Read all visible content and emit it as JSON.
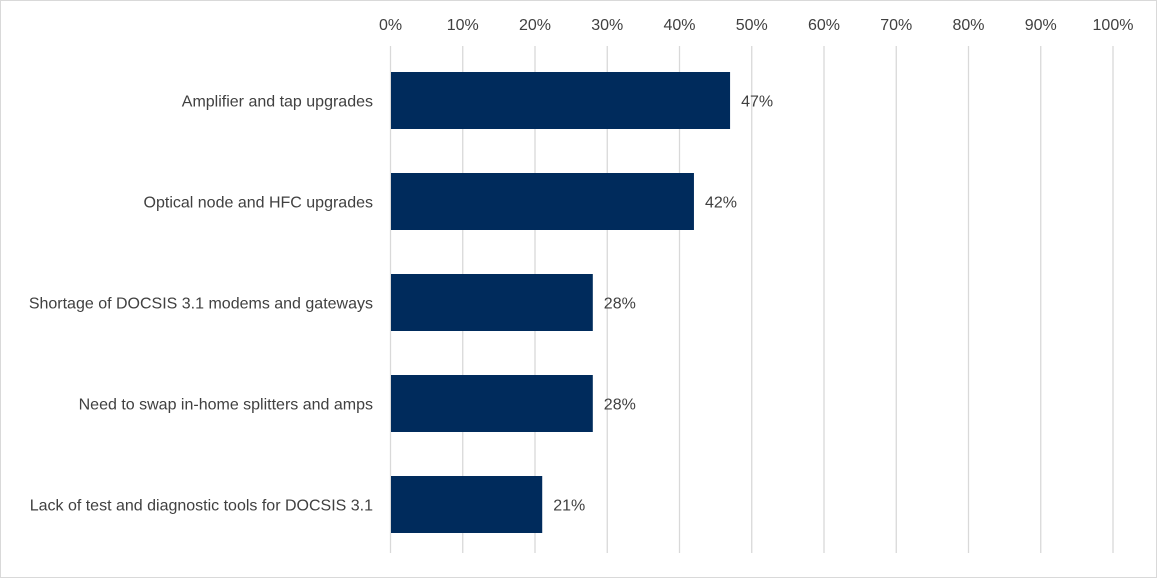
{
  "chart_data": {
    "type": "bar",
    "orientation": "horizontal",
    "categories": [
      "Amplifier and tap upgrades",
      "Optical node and HFC upgrades",
      "Shortage of DOCSIS 3.1 modems and gateways",
      "Need to swap in-home splitters and amps",
      "Lack of test and diagnostic tools for DOCSIS 3.1"
    ],
    "values": [
      47,
      42,
      28,
      28,
      21
    ],
    "data_labels": [
      "47%",
      "42%",
      "28%",
      "28%",
      "21%"
    ],
    "xlim": [
      0,
      100
    ],
    "x_ticks": [
      0,
      10,
      20,
      30,
      40,
      50,
      60,
      70,
      80,
      90,
      100
    ],
    "x_tick_labels": [
      "0%",
      "10%",
      "20%",
      "30%",
      "40%",
      "50%",
      "60%",
      "70%",
      "80%",
      "90%",
      "100%"
    ],
    "x_axis_position": "top",
    "grid": true,
    "legend": "none",
    "title": "",
    "xlabel": "",
    "ylabel": "",
    "bar_color": "#002b5c",
    "gridline_color": "#d9d9d9",
    "text_color": "#404040"
  }
}
